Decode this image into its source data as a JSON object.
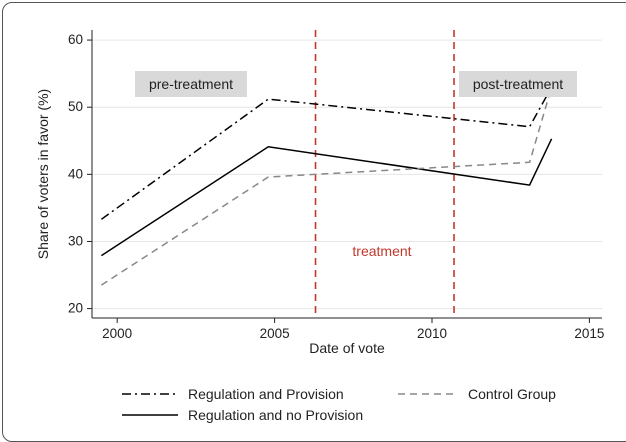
{
  "chart_data": {
    "type": "line",
    "xlabel": "Date of vote",
    "ylabel": "Share of voters in favor (%)",
    "xlim": [
      1999.2,
      2015.4
    ],
    "ylim": [
      18.6,
      61.5
    ],
    "x_ticks": [
      2000,
      2005,
      2010,
      2015
    ],
    "y_ticks": [
      20,
      30,
      40,
      50,
      60
    ],
    "grid": "horizontal",
    "series": [
      {
        "name": "Regulation and Provision",
        "style": "dash-dot",
        "color": "#000000",
        "points": [
          [
            1999.5,
            33.3
          ],
          [
            2004.8,
            51.2
          ],
          [
            2013.1,
            47.1
          ],
          [
            2013.8,
            53.0
          ]
        ]
      },
      {
        "name": "Regulation and no Provision",
        "style": "solid",
        "color": "#000000",
        "points": [
          [
            1999.5,
            27.9
          ],
          [
            2004.8,
            44.1
          ],
          [
            2013.1,
            38.4
          ],
          [
            2013.8,
            45.3
          ]
        ]
      },
      {
        "name": "Control Group",
        "style": "dashed",
        "color": "#888888",
        "points": [
          [
            1999.5,
            23.5
          ],
          [
            2004.8,
            39.6
          ],
          [
            2013.1,
            41.8
          ],
          [
            2013.8,
            53.0
          ]
        ]
      }
    ],
    "vlines": [
      {
        "x": 2006.3,
        "color": "#c0392b",
        "style": "dashed"
      },
      {
        "x": 2010.7,
        "color": "#c0392b",
        "style": "dashed"
      }
    ],
    "annotations": [
      {
        "text": "pre-treatment",
        "boxed": true,
        "box_color": "#d9d9d9"
      },
      {
        "text": "post-treatment",
        "boxed": true,
        "box_color": "#d9d9d9"
      },
      {
        "text": "treatment",
        "color": "#c0392b"
      }
    ],
    "legend": {
      "placement": "bottom",
      "entries": [
        {
          "label": "Regulation and Provision",
          "style": "dash-dot",
          "color": "#000000"
        },
        {
          "label": "Control Group",
          "style": "dashed",
          "color": "#888888"
        },
        {
          "label": "Regulation and no Provision",
          "style": "solid",
          "color": "#000000"
        }
      ]
    }
  }
}
